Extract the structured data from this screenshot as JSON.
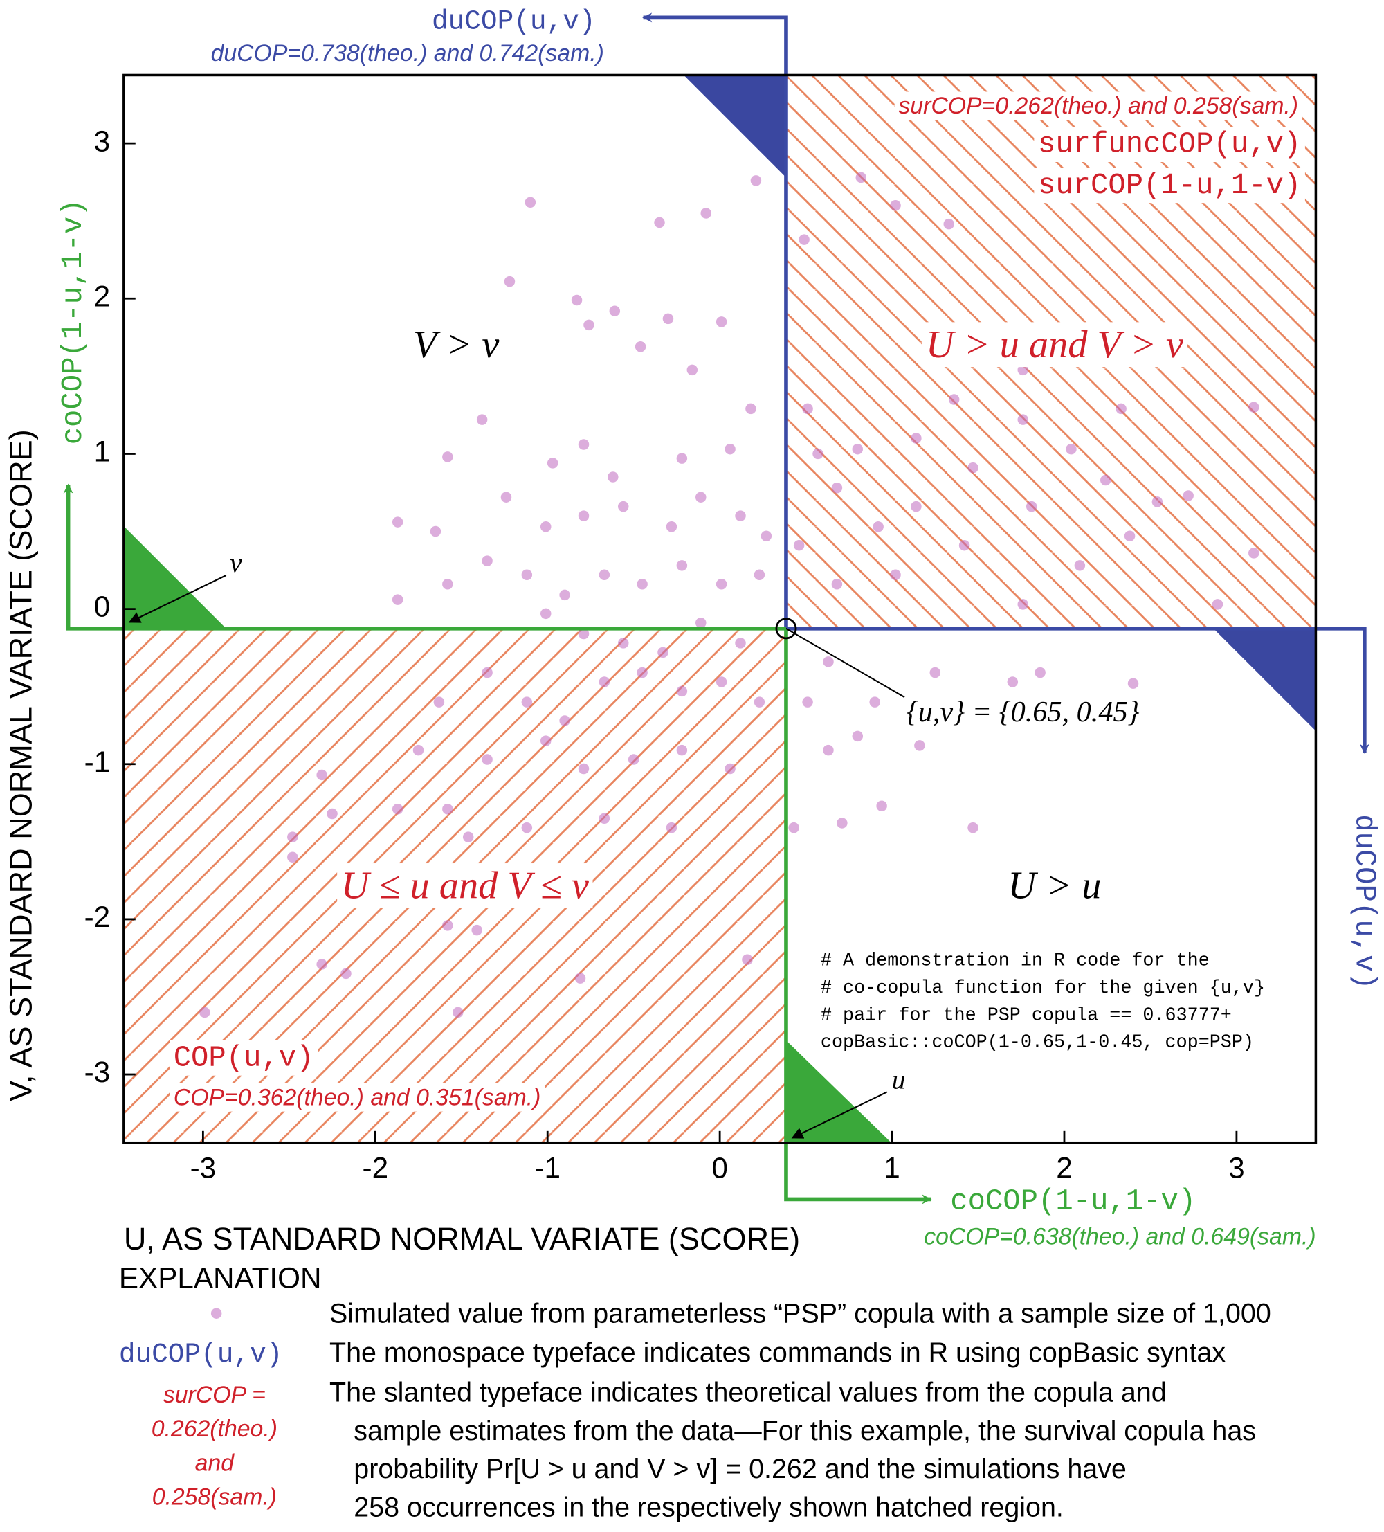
{
  "chart_data": {
    "type": "scatter",
    "x_label": "U, AS STANDARD NORMAL VARIATE (SCORE)",
    "y_label": "V, AS STANDARD NORMAL VARIATE (SCORE)",
    "xlim": [
      -3.46,
      3.46
    ],
    "ylim": [
      -3.44,
      3.44
    ],
    "xticks": [
      -3,
      -2,
      -1,
      0,
      1,
      2,
      3
    ],
    "yticks": [
      -3,
      -2,
      -1,
      0,
      1,
      2,
      3
    ],
    "crosshair": {
      "x": 0.385,
      "y": -0.126,
      "label": "{u,v} = {0.65, 0.45}"
    },
    "series": [
      {
        "name": "Simulated value from parameterless “PSP” copula with a sample size of 1,000",
        "color": "#c06ac0",
        "x": [
          -1.1,
          0.21,
          -0.08,
          -0.35,
          -1.22,
          -0.83,
          -0.61,
          -0.3,
          0.01,
          -0.76,
          -0.46,
          -0.16,
          -1.38,
          -1.58,
          -0.97,
          -0.79,
          -0.62,
          -0.22,
          0.06,
          0.18,
          -1.87,
          -1.65,
          -1.24,
          -1.01,
          -0.79,
          -0.56,
          -0.28,
          -0.11,
          0.12,
          0.27,
          -1.87,
          -1.58,
          -1.35,
          -1.12,
          -0.9,
          -0.67,
          -0.45,
          -0.22,
          0.01,
          0.23,
          -1.01,
          -0.79,
          -0.56,
          -0.33,
          -0.11,
          0.12,
          -0.67,
          -0.45,
          -0.22,
          0.01,
          0.23,
          -1.35,
          -1.12,
          -0.9,
          -1.63,
          -1.75,
          -1.35,
          -1.01,
          -0.79,
          -0.5,
          -0.22,
          0.06,
          -2.31,
          -2.25,
          -1.87,
          -1.58,
          -1.46,
          -1.12,
          -0.67,
          -0.28,
          -2.48,
          -2.48,
          -1.97,
          -1.58,
          -1.41,
          -2.31,
          -2.17,
          -2.99,
          -0.81,
          0.16,
          -1.52,
          0.43,
          0.63,
          0.71,
          0.94,
          1.16,
          1.47,
          1.86,
          2.4,
          1.25,
          0.9,
          0.63,
          0.51,
          1.7,
          0.8,
          0.49,
          0.82,
          1.02,
          3.1,
          2.72,
          3.1,
          2.89,
          2.24,
          2.04,
          2.33,
          1.76,
          1.36,
          1.14,
          0.8,
          0.57,
          0.51,
          1.47,
          1.81,
          2.54,
          2.09,
          1.42,
          1.14,
          0.92,
          0.68,
          0.46,
          0.68,
          1.02,
          1.76,
          2.38,
          1.76,
          1.47,
          1.33
        ],
        "y": [
          2.62,
          2.76,
          2.55,
          2.49,
          2.11,
          1.99,
          1.92,
          1.87,
          1.85,
          1.83,
          1.69,
          1.54,
          1.22,
          0.98,
          0.94,
          1.06,
          0.85,
          0.97,
          1.03,
          1.29,
          0.56,
          0.5,
          0.72,
          0.53,
          0.6,
          0.66,
          0.53,
          0.72,
          0.6,
          0.47,
          0.06,
          0.16,
          0.31,
          0.22,
          0.09,
          0.22,
          0.16,
          0.28,
          0.16,
          0.22,
          -0.03,
          -0.16,
          -0.22,
          -0.28,
          -0.09,
          -0.22,
          -0.47,
          -0.41,
          -0.53,
          -0.47,
          -0.6,
          -0.41,
          -0.6,
          -0.72,
          -0.6,
          -0.91,
          -0.97,
          -0.85,
          -1.03,
          -0.97,
          -0.91,
          -1.03,
          -1.07,
          -1.32,
          -1.29,
          -1.29,
          -1.47,
          -1.41,
          -1.35,
          -1.41,
          -1.47,
          -1.6,
          -1.72,
          -2.04,
          -2.07,
          -2.29,
          -2.35,
          -2.6,
          -2.38,
          -2.26,
          -2.6,
          -1.41,
          -0.91,
          -1.38,
          -1.27,
          -0.88,
          -1.41,
          -0.41,
          -0.48,
          -0.41,
          -0.6,
          -0.34,
          -0.6,
          -0.47,
          -0.82,
          2.38,
          2.78,
          2.6,
          1.3,
          0.73,
          0.36,
          0.03,
          0.83,
          1.03,
          1.29,
          1.22,
          1.35,
          1.1,
          1.03,
          1.0,
          1.29,
          0.91,
          0.66,
          0.69,
          0.28,
          0.41,
          0.66,
          0.53,
          0.78,
          0.41,
          0.16,
          0.22,
          0.03,
          0.47,
          1.54,
          1.66,
          2.48
        ]
      }
    ],
    "annotations": [
      "duCOP(u,v)",
      "duCOP=0.738(theo.) and 0.742(sam.)",
      "surCOP=0.262(theo.) and 0.258(sam.)",
      "surfuncCOP(u,v)",
      "surCOP(1-u,1-v)",
      "V > v",
      "U > u  and  V > v",
      "U ≤ u and V ≤ v",
      "U > u",
      "COP(u,v)",
      "COP=0.362(theo.) and 0.351(sam.)",
      "coCOP(1-u,1-v)",
      "coCOP=0.638(theo.) and 0.649(sam.)",
      "coCOP(1-u,1-v)",
      "duCOP(u,v)",
      "v",
      "u"
    ],
    "code": [
      "# A demonstration in R code for the",
      "# co-copula function for the given {u,v}",
      "# pair for the PSP copula == 0.63777+",
      "copBasic::coCOP(1-0.65,1-0.45, cop=PSP)"
    ]
  },
  "explanation": {
    "title": "EXPLANATION",
    "command_symbol": "duCOP(u,v)",
    "command_text": "The monospace typeface indicates commands in R using copBasic syntax",
    "value_symbol": [
      "surCOP =",
      "0.262(theo.)",
      "and",
      "0.258(sam.)"
    ],
    "value_text": [
      "The slanted typeface indicates theoretical values from the copula and",
      "sample estimates from the data—For this example, the survival copula has",
      "probability Pr[U > u and V > v] = 0.262 and the simulations have",
      "258 occurrences in the respectively shown hatched region."
    ]
  }
}
